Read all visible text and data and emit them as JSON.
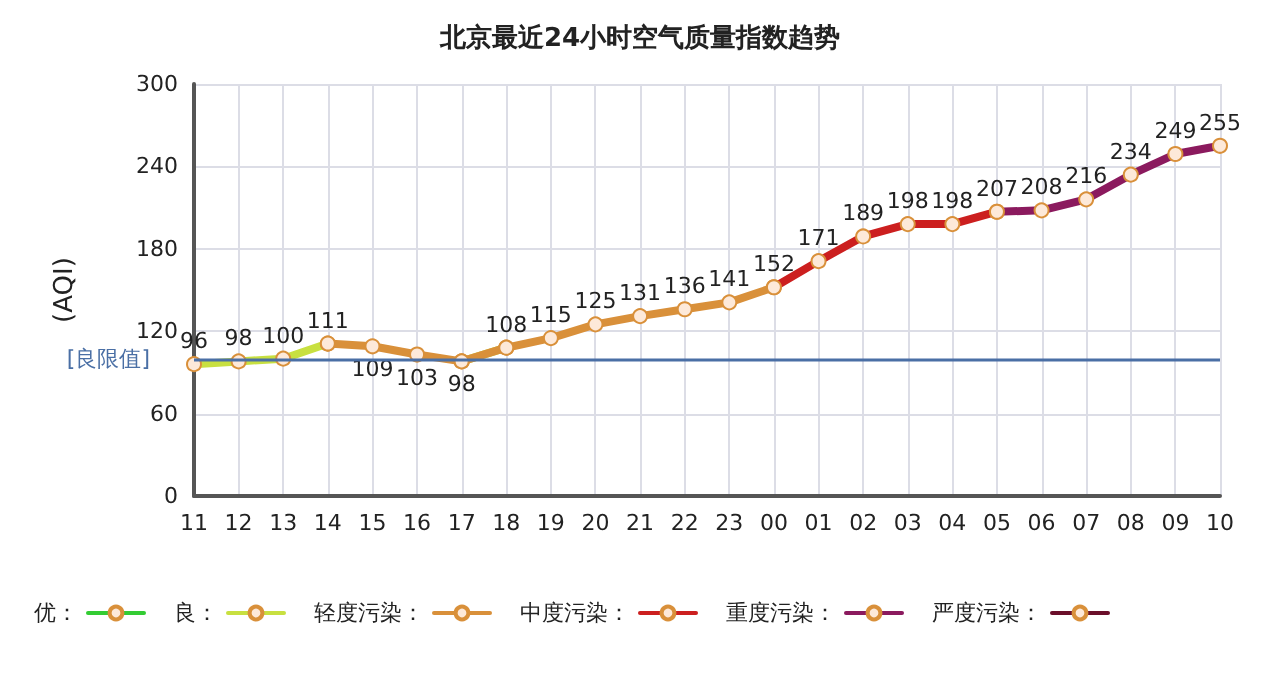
{
  "chart_data": {
    "type": "line",
    "title": "北京最近24小时空气质量指数趋势",
    "ylabel": "(AQI)",
    "categories": [
      "11",
      "12",
      "13",
      "14",
      "15",
      "16",
      "17",
      "18",
      "19",
      "20",
      "21",
      "22",
      "23",
      "00",
      "01",
      "02",
      "03",
      "04",
      "05",
      "06",
      "07",
      "08",
      "09",
      "10"
    ],
    "series": [
      {
        "name": "优：",
        "color": "#33cc33",
        "values": [
          null,
          null,
          null,
          null,
          null,
          null,
          null,
          null,
          null,
          null,
          null,
          null,
          null,
          null,
          null,
          null,
          null,
          null,
          null,
          null,
          null,
          null,
          null,
          null
        ]
      },
      {
        "name": "良：",
        "color": "#c8e040",
        "values": [
          96,
          98,
          100,
          111,
          null,
          null,
          98,
          108,
          null,
          null,
          null,
          null,
          null,
          null,
          null,
          null,
          null,
          null,
          null,
          null,
          null,
          null,
          null,
          null
        ],
        "value_labels": [
          "96",
          "98",
          "100",
          null,
          null,
          null,
          "98",
          null,
          null,
          null,
          null,
          null,
          null,
          null,
          null,
          null,
          null,
          null,
          null,
          null,
          null,
          null,
          null,
          null
        ]
      },
      {
        "name": "轻度污染：",
        "color": "#d9903a",
        "values": [
          null,
          null,
          null,
          111,
          109,
          103,
          98,
          108,
          115,
          125,
          131,
          136,
          141,
          152,
          null,
          null,
          null,
          null,
          null,
          null,
          null,
          null,
          null,
          null
        ],
        "value_labels": [
          null,
          null,
          null,
          "111",
          "109",
          "103",
          null,
          "108",
          "115",
          "125",
          "131",
          "136",
          "141",
          null,
          null,
          null,
          null,
          null,
          null,
          null,
          null,
          null,
          null,
          null
        ]
      },
      {
        "name": "中度污染：",
        "color": "#cc1f1f",
        "values": [
          null,
          null,
          null,
          null,
          null,
          null,
          null,
          null,
          null,
          null,
          null,
          null,
          null,
          152,
          171,
          189,
          198,
          198,
          207,
          null,
          null,
          null,
          null,
          null
        ],
        "value_labels": [
          null,
          null,
          null,
          null,
          null,
          null,
          null,
          null,
          null,
          null,
          null,
          null,
          null,
          "152",
          "171",
          "189",
          "198",
          "198",
          null,
          null,
          null,
          null,
          null,
          null
        ]
      },
      {
        "name": "重度污染：",
        "color": "#8b1a5e",
        "values": [
          null,
          null,
          null,
          null,
          null,
          null,
          null,
          null,
          null,
          null,
          null,
          null,
          null,
          null,
          null,
          null,
          null,
          null,
          207,
          208,
          216,
          234,
          249,
          255
        ],
        "value_labels": [
          null,
          null,
          null,
          null,
          null,
          null,
          null,
          null,
          null,
          null,
          null,
          null,
          null,
          null,
          null,
          null,
          null,
          null,
          "207",
          "208",
          "216",
          "234",
          "249",
          "255"
        ]
      },
      {
        "name": "严度污染：",
        "color": "#6b0f2a",
        "values": [
          null,
          null,
          null,
          null,
          null,
          null,
          null,
          null,
          null,
          null,
          null,
          null,
          null,
          null,
          null,
          null,
          null,
          null,
          null,
          null,
          null,
          null,
          null,
          null
        ]
      }
    ],
    "ylim": [
      0,
      300
    ],
    "yticks": [
      0,
      60,
      120,
      180,
      240,
      300
    ],
    "ref_lines": [
      {
        "axis": "y",
        "value": 100,
        "label": "[良限值]",
        "color": "#4a6fa5"
      }
    ],
    "grid": true,
    "legend": "bottom left",
    "marker": "circle"
  }
}
